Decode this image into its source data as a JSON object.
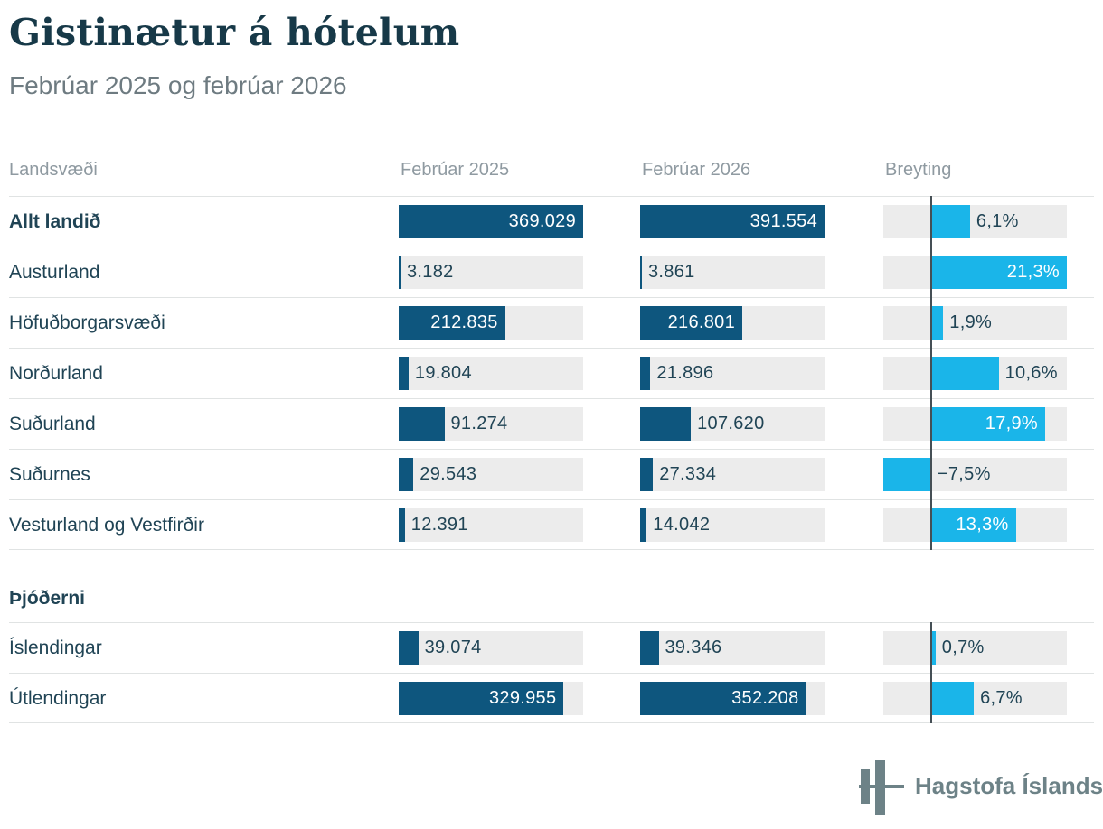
{
  "title": "Gistinætur á hótelum",
  "subtitle": "Febrúar 2025 og febrúar 2026",
  "columns": {
    "region": "Landsvæði",
    "col2025": "Febrúar 2025",
    "col2026": "Febrúar 2026",
    "change": "Breyting"
  },
  "sections": [
    {
      "header": null,
      "rows": [
        {
          "label": "Allt landið",
          "bold": true,
          "v2025": 369029,
          "v2025_label": "369.029",
          "v2026": 391554,
          "v2026_label": "391.554",
          "change": 6.1,
          "change_label": "6,1%"
        },
        {
          "label": "Austurland",
          "bold": false,
          "v2025": 3182,
          "v2025_label": "3.182",
          "v2026": 3861,
          "v2026_label": "3.861",
          "change": 21.3,
          "change_label": "21,3%"
        },
        {
          "label": "Höfuðborgarsvæði",
          "bold": false,
          "v2025": 212835,
          "v2025_label": "212.835",
          "v2026": 216801,
          "v2026_label": "216.801",
          "change": 1.9,
          "change_label": "1,9%"
        },
        {
          "label": "Norðurland",
          "bold": false,
          "v2025": 19804,
          "v2025_label": "19.804",
          "v2026": 21896,
          "v2026_label": "21.896",
          "change": 10.6,
          "change_label": "10,6%"
        },
        {
          "label": "Suðurland",
          "bold": false,
          "v2025": 91274,
          "v2025_label": "91.274",
          "v2026": 107620,
          "v2026_label": "107.620",
          "change": 17.9,
          "change_label": "17,9%"
        },
        {
          "label": "Suðurnes",
          "bold": false,
          "v2025": 29543,
          "v2025_label": "29.543",
          "v2026": 27334,
          "v2026_label": "27.334",
          "change": -7.5,
          "change_label": "−7,5%"
        },
        {
          "label": "Vesturland og Vestfirðir",
          "bold": false,
          "v2025": 12391,
          "v2025_label": "12.391",
          "v2026": 14042,
          "v2026_label": "14.042",
          "change": 13.3,
          "change_label": "13,3%"
        }
      ]
    },
    {
      "header": "Þjóðerni",
      "rows": [
        {
          "label": "Íslendingar",
          "bold": false,
          "v2025": 39074,
          "v2025_label": "39.074",
          "v2026": 39346,
          "v2026_label": "39.346",
          "change": 0.7,
          "change_label": "0,7%"
        },
        {
          "label": "Útlendingar",
          "bold": false,
          "v2025": 329955,
          "v2025_label": "329.955",
          "v2026": 352208,
          "v2026_label": "352.208",
          "change": 6.7,
          "change_label": "6,7%"
        }
      ]
    }
  ],
  "chart_data": {
    "type": "bar",
    "title": "Gistinætur á hótelum",
    "subtitle": "Febrúar 2025 og febrúar 2026",
    "categories": [
      "Allt landið",
      "Austurland",
      "Höfuðborgarsvæði",
      "Norðurland",
      "Suðurland",
      "Suðurnes",
      "Vesturland og Vestfirðir",
      "Íslendingar",
      "Útlendingar"
    ],
    "category_groups": {
      "Landsvæði": [
        "Allt landið",
        "Austurland",
        "Höfuðborgarsvæði",
        "Norðurland",
        "Suðurland",
        "Suðurnes",
        "Vesturland og Vestfirðir"
      ],
      "Þjóðerni": [
        "Íslendingar",
        "Útlendingar"
      ]
    },
    "series": [
      {
        "name": "Febrúar 2025",
        "values": [
          369029,
          3182,
          212835,
          19804,
          91274,
          29543,
          12391,
          39074,
          329955
        ]
      },
      {
        "name": "Febrúar 2026",
        "values": [
          391554,
          3861,
          216801,
          21896,
          107620,
          27334,
          14042,
          39346,
          352208
        ]
      },
      {
        "name": "Breyting",
        "unit": "%",
        "values": [
          6.1,
          21.3,
          1.9,
          10.6,
          17.9,
          -7.5,
          13.3,
          0.7,
          6.7
        ]
      }
    ],
    "layout": "horizontal bars in table columns; change column has zero axis line, range -7.5 to 21.3",
    "grid": false,
    "legend_position": "column headers"
  },
  "colors": {
    "navy": "#0e567e",
    "cyan": "#1ab5e9",
    "track": "#ececec",
    "text": "#204455",
    "title": "#173948",
    "subtitle": "#6e7b81",
    "header": "#8f9aa1",
    "divider": "#e0e3e3",
    "zero": "#454f55",
    "logo": "#6d8287"
  },
  "footer": {
    "logo_text": "Hagstofa Íslands"
  }
}
